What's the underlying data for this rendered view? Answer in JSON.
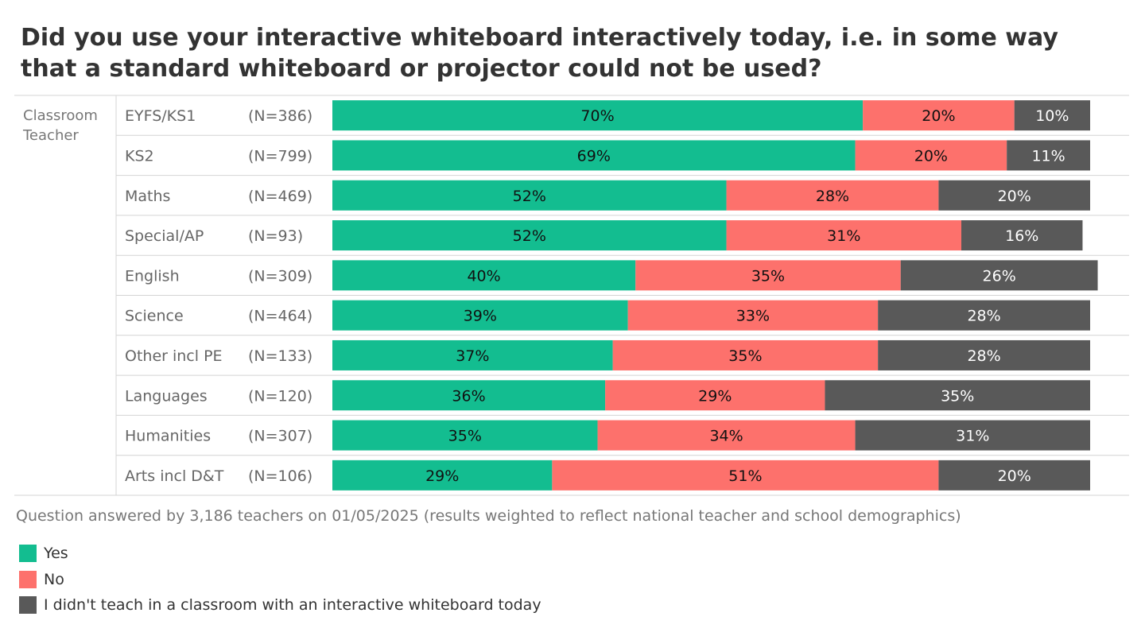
{
  "title": "Did you use your interactive whiteboard interactively today, i.e. in some way that a standard whiteboard or projector could not be used?",
  "footnote": "Question answered by 3,186 teachers on 01/05/2025 (results weighted to reflect national teacher and school demographics)",
  "colors": {
    "yes": "#13bd90",
    "no": "#fd716c",
    "didnt": "#595959"
  },
  "chart_data": {
    "type": "bar",
    "orientation": "horizontal",
    "stacked": true,
    "group_label": "Classroom Teacher",
    "categories": [
      "EYFS/KS1",
      "KS2",
      "Maths",
      "Special/AP",
      "English",
      "Science",
      "Other incl PE",
      "Languages",
      "Humanities",
      "Arts incl D&T"
    ],
    "n_labels": [
      "(N=386)",
      "(N=799)",
      "(N=469)",
      "(N=93)",
      "(N=309)",
      "(N=464)",
      "(N=133)",
      "(N=120)",
      "(N=307)",
      "(N=106)"
    ],
    "series": [
      {
        "name": "Yes",
        "color": "#13bd90",
        "text_color": "#111111",
        "values": [
          70,
          69,
          52,
          52,
          40,
          39,
          37,
          36,
          35,
          29
        ],
        "labels": [
          "70%",
          "69%",
          "52%",
          "52%",
          "40%",
          "39%",
          "37%",
          "36%",
          "35%",
          "29%"
        ]
      },
      {
        "name": "No",
        "color": "#fd716c",
        "text_color": "#111111",
        "values": [
          20,
          20,
          28,
          31,
          35,
          33,
          35,
          29,
          34,
          51
        ],
        "labels": [
          "20%",
          "20%",
          "28%",
          "31%",
          "35%",
          "33%",
          "35%",
          "29%",
          "34%",
          "51%"
        ]
      },
      {
        "name": "I didn't teach in a classroom with an interactive whiteboard today",
        "color": "#595959",
        "text_color": "#ffffff",
        "values": [
          10,
          11,
          20,
          16,
          26,
          28,
          28,
          35,
          31,
          20
        ],
        "labels": [
          "10%",
          "11%",
          "20%",
          "16%",
          "26%",
          "28%",
          "28%",
          "35%",
          "31%",
          "20%"
        ]
      }
    ],
    "xlim": [
      0,
      100
    ],
    "legend": "bottom-left",
    "grid": false
  }
}
